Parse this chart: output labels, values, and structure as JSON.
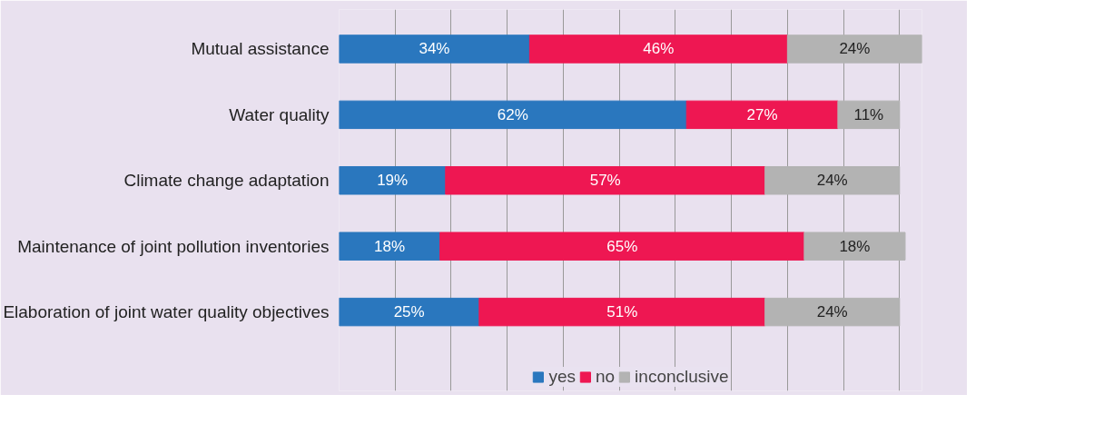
{
  "chart_data": {
    "type": "bar",
    "orientation": "horizontal",
    "stacked": true,
    "grid": "x",
    "legend": "bottom",
    "tick_labels": "y",
    "categories": [
      "Mutual assistance",
      "Water quality",
      "Climate change adaptation",
      "Maintenance of joint pollution inventories",
      "Elaboration of joint water quality objectives"
    ],
    "xticks": [
      {
        "value": 0,
        "label": null
      },
      {
        "value": 10,
        "label": null
      },
      {
        "value": 20,
        "label": null
      },
      {
        "value": 30,
        "label": null
      },
      {
        "value": 40,
        "label": null
      },
      {
        "value": 50,
        "label": null
      },
      {
        "value": 60,
        "label": null
      },
      {
        "value": 70,
        "label": null
      },
      {
        "value": 80,
        "label": null
      },
      {
        "value": 90,
        "label": null
      },
      {
        "value": 100,
        "label": null
      }
    ],
    "series": [
      {
        "name": "yes",
        "color": "#2a77be",
        "values": [
          34,
          62,
          19,
          18,
          25
        ],
        "value_labels": [
          "34%",
          "62%",
          "19%",
          "18%",
          "25%"
        ]
      },
      {
        "name": "no",
        "color": "#ee1752",
        "values": [
          46,
          27,
          57,
          65,
          51
        ],
        "value_labels": [
          "46%",
          "27%",
          "57%",
          "65%",
          "51%"
        ]
      },
      {
        "name": "inconclusive",
        "color": "#b3b3b3",
        "values": [
          24,
          11,
          24,
          18,
          24
        ],
        "value_labels": [
          "24%",
          "11%",
          "24%",
          "18%",
          "24%"
        ]
      }
    ]
  }
}
